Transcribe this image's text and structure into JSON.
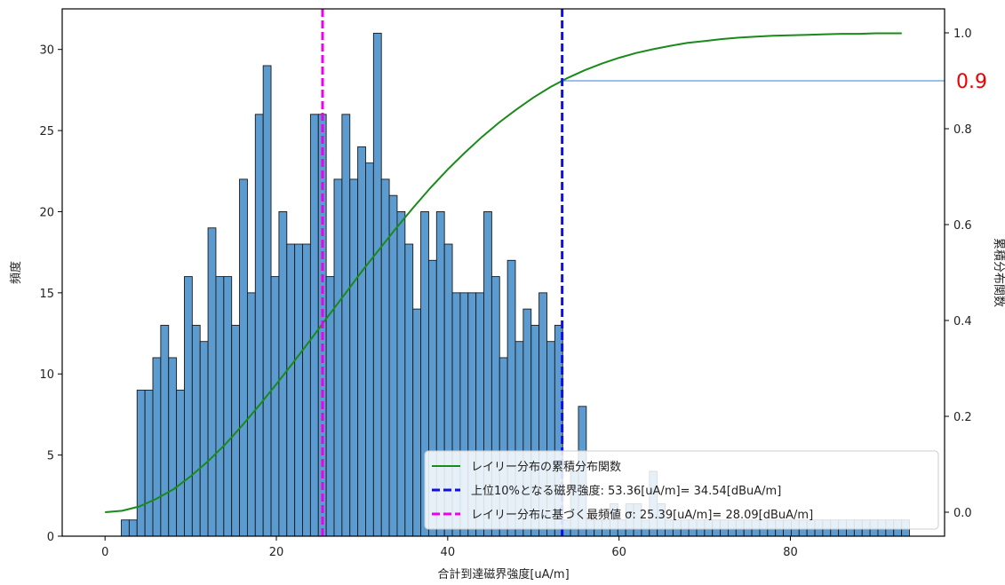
{
  "chart_data": {
    "type": "bar",
    "xlabel": "合計到達磁界強度[uA/m]",
    "ylabel": "頻度",
    "y2label": "累積分布関数",
    "xlim": [
      -5,
      98
    ],
    "ylim": [
      0,
      32.5
    ],
    "y2lim": [
      -0.05,
      1.05
    ],
    "x_ticks": [
      0,
      20,
      40,
      60,
      80
    ],
    "y_ticks": [
      0,
      5,
      10,
      15,
      20,
      25,
      30
    ],
    "y2_ticks": [
      0.0,
      0.2,
      0.4,
      0.6,
      0.8,
      1.0
    ],
    "y2_tick_labels": [
      "0.0",
      "0.2",
      "0.4",
      "0.6",
      "0.8",
      "1.0"
    ],
    "grid": false,
    "legend_position": "lower-right",
    "histogram": {
      "bin_start": 1.9,
      "bin_width": 0.92,
      "color": "#5b9bd0",
      "edge_color": "#1a1a1a",
      "counts": [
        1,
        1,
        9,
        9,
        11,
        13,
        11,
        9,
        16,
        13,
        12,
        19,
        16,
        16,
        13,
        22,
        15,
        26,
        29,
        16,
        20,
        18,
        18,
        18,
        26,
        26,
        16,
        22,
        26,
        22,
        24,
        23,
        31,
        22,
        21,
        20,
        18,
        14,
        20,
        17,
        20,
        18,
        15,
        15,
        15,
        15,
        20,
        16,
        11,
        17,
        12,
        14,
        13,
        15,
        12,
        13,
        1,
        4,
        8,
        1,
        1,
        1,
        2,
        1,
        2,
        2,
        1,
        4,
        2,
        1,
        1,
        1,
        1,
        1,
        1,
        1,
        1,
        1,
        1,
        1,
        1,
        1,
        1,
        1,
        1,
        1,
        1,
        1,
        1,
        1,
        1,
        1,
        1,
        1,
        1,
        1,
        1,
        1,
        1,
        1
      ]
    },
    "series": [
      {
        "name": "レイリー分布の累積分布関数",
        "kind": "line",
        "color": "#1a8a1a",
        "x": [
          0,
          2,
          4,
          6,
          8,
          10,
          12,
          14,
          16,
          18,
          20,
          22,
          24,
          26,
          28,
          30,
          32,
          34,
          36,
          38,
          40,
          42,
          44,
          46,
          48,
          50,
          52,
          54,
          56,
          58,
          60,
          62,
          64,
          66,
          68,
          70,
          72,
          74,
          76,
          78,
          80,
          82,
          84,
          86,
          88,
          90,
          93
        ],
        "y": [
          0.0,
          0.003,
          0.012,
          0.028,
          0.048,
          0.075,
          0.106,
          0.141,
          0.181,
          0.223,
          0.267,
          0.313,
          0.36,
          0.408,
          0.455,
          0.503,
          0.548,
          0.593,
          0.636,
          0.677,
          0.715,
          0.75,
          0.783,
          0.813,
          0.84,
          0.865,
          0.887,
          0.906,
          0.922,
          0.936,
          0.948,
          0.958,
          0.966,
          0.973,
          0.979,
          0.983,
          0.987,
          0.99,
          0.992,
          0.994,
          0.995,
          0.996,
          0.997,
          0.998,
          0.998,
          0.999,
          0.999
        ]
      },
      {
        "name": "上位10%となる磁界強度: 53.36[uA/m]= 34.54[dBuA/m]",
        "kind": "vline",
        "x": 53.36,
        "color": "#1010e0"
      },
      {
        "name": "レイリー分布に基づく最頻値 σ: 25.39[uA/m]= 28.09[dBuA/m]",
        "kind": "vline",
        "x": 25.39,
        "color": "#ee00ee"
      }
    ],
    "annotations": [
      {
        "kind": "hline_y2",
        "y2": 0.9,
        "from_x": 53.36,
        "label": "0.9",
        "label_color": "#ee0000",
        "line_color": "#3a7fd8"
      }
    ]
  }
}
